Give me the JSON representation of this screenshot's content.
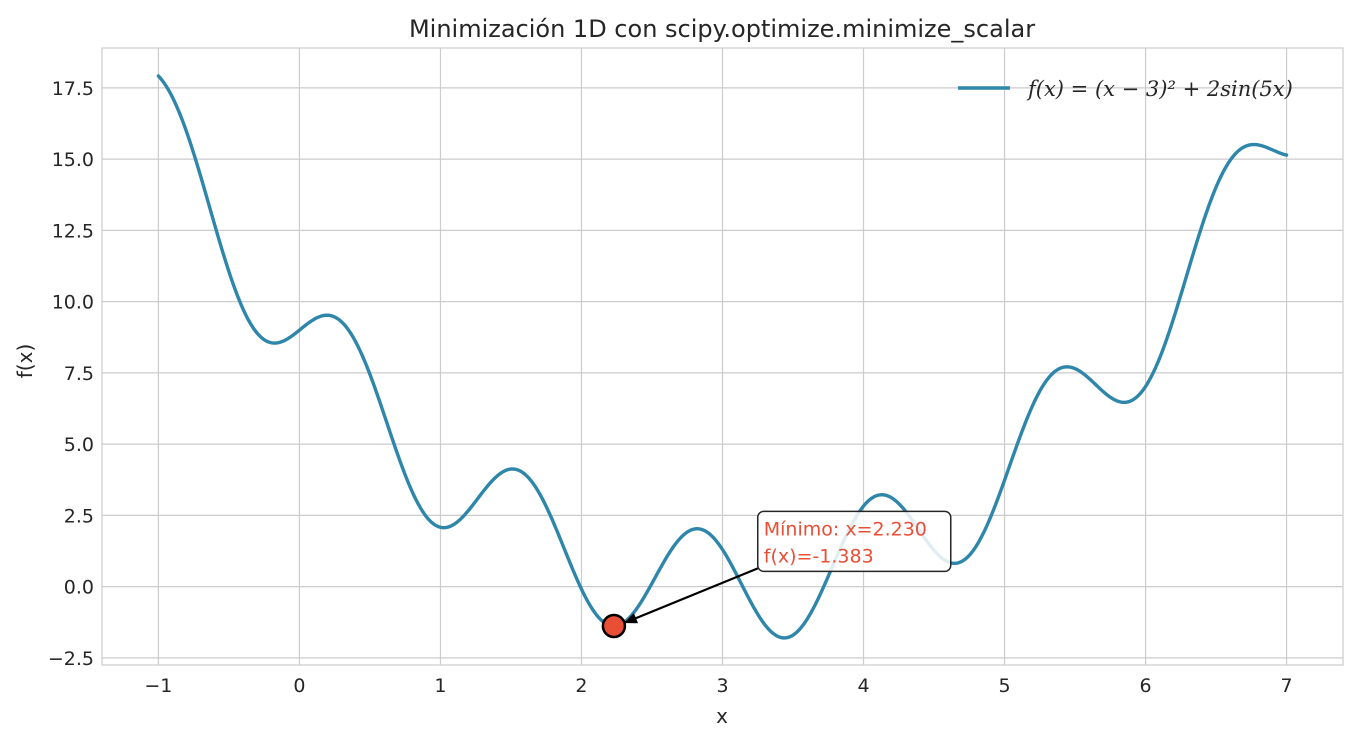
{
  "chart_data": {
    "type": "line",
    "title": "Minimización 1D con scipy.optimize.minimize_scalar",
    "xlabel": "x",
    "ylabel": "f(x)",
    "xlim": [
      -1.4,
      7.4
    ],
    "ylim": [
      -2.75,
      18.9
    ],
    "xticks": [
      -1,
      0,
      1,
      2,
      3,
      4,
      5,
      6,
      7
    ],
    "xtick_labels": [
      "−1",
      "0",
      "1",
      "2",
      "3",
      "4",
      "5",
      "6",
      "7"
    ],
    "yticks": [
      -2.5,
      0.0,
      2.5,
      5.0,
      7.5,
      10.0,
      12.5,
      15.0,
      17.5
    ],
    "ytick_labels": [
      "−2.5",
      "0.0",
      "2.5",
      "5.0",
      "7.5",
      "10.0",
      "12.5",
      "15.0",
      "17.5"
    ],
    "grid": true,
    "legend_position": "top-right",
    "series": [
      {
        "name": "f(x) = (x − 3)² + 2sin(5x)",
        "function": "(x-3)^2 + 2*sin(5*x)",
        "x_range": [
          -1,
          7
        ],
        "color": "#2e86ab"
      }
    ],
    "minimum": {
      "x": 2.23,
      "y": -1.383,
      "color": "#e94f37",
      "label_line1": "Mínimo: x=2.230",
      "label_line2": "f(x)=-1.383",
      "label_anchor_x": 3.25,
      "label_anchor_y": 0.5
    }
  },
  "colors": {
    "line": "#2e86ab",
    "marker": "#e94f37",
    "grid": "#cccccc",
    "spine": "#cccccc",
    "text": "#262626"
  }
}
